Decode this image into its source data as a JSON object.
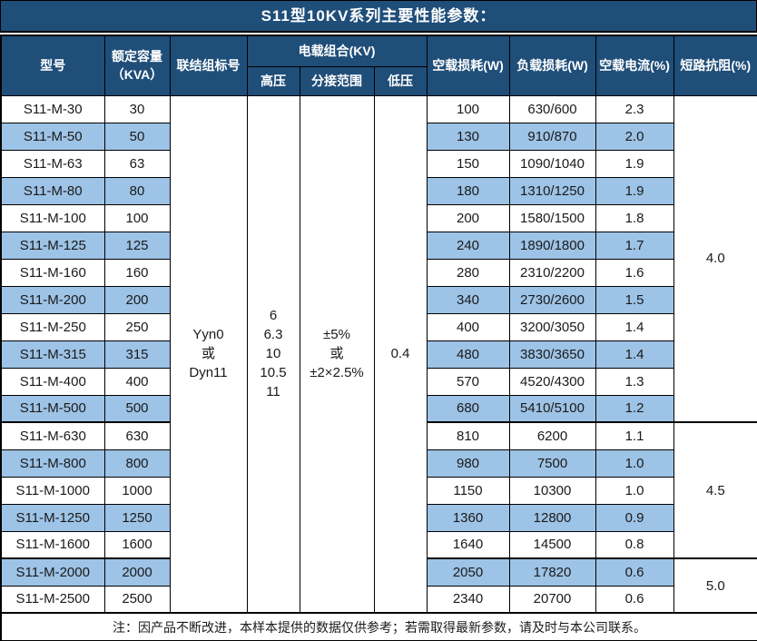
{
  "title": "S11型10KV系列主要性能参数：",
  "colors": {
    "header_bg": "#1F4E79",
    "alt_row_bg": "#9DC3E6",
    "border": "#000000",
    "header_text": "#FFFFFF"
  },
  "table": {
    "headers": {
      "model": "型号",
      "capacity_line1": "额定容量",
      "capacity_line2": "（KVA）",
      "vector_group": "联结组标号",
      "voltage_combo": "电载组合(KV)",
      "hv": "高压",
      "tap_range": "分接范围",
      "lv": "低压",
      "no_load_loss": "空载损耗(W)",
      "load_loss": "负载损耗(W)",
      "no_load_current": "空载电流(%)",
      "impedance": "短路抗阻(%)"
    },
    "merged": {
      "vector_group": [
        "Yyn0",
        "或",
        "Dyn11"
      ],
      "hv": [
        "6",
        "6.3",
        "10",
        "10.5",
        "11"
      ],
      "tap_range": [
        "±5%",
        "或",
        "±2×2.5%"
      ],
      "lv": [
        "0.4"
      ]
    },
    "impedance_groups": [
      {
        "value": "4.0",
        "rows": 12
      },
      {
        "value": "4.5",
        "rows": 5
      },
      {
        "value": "5.0",
        "rows": 2
      }
    ],
    "rows": [
      {
        "model": "S11-M-30",
        "capacity": "30",
        "no_load_loss": "100",
        "load_loss": "630/600",
        "no_load_current": "2.3"
      },
      {
        "model": "S11-M-50",
        "capacity": "50",
        "no_load_loss": "130",
        "load_loss": "910/870",
        "no_load_current": "2.0"
      },
      {
        "model": "S11-M-63",
        "capacity": "63",
        "no_load_loss": "150",
        "load_loss": "1090/1040",
        "no_load_current": "1.9"
      },
      {
        "model": "S11-M-80",
        "capacity": "80",
        "no_load_loss": "180",
        "load_loss": "1310/1250",
        "no_load_current": "1.9"
      },
      {
        "model": "S11-M-100",
        "capacity": "100",
        "no_load_loss": "200",
        "load_loss": "1580/1500",
        "no_load_current": "1.8"
      },
      {
        "model": "S11-M-125",
        "capacity": "125",
        "no_load_loss": "240",
        "load_loss": "1890/1800",
        "no_load_current": "1.7"
      },
      {
        "model": "S11-M-160",
        "capacity": "160",
        "no_load_loss": "280",
        "load_loss": "2310/2200",
        "no_load_current": "1.6"
      },
      {
        "model": "S11-M-200",
        "capacity": "200",
        "no_load_loss": "340",
        "load_loss": "2730/2600",
        "no_load_current": "1.5"
      },
      {
        "model": "S11-M-250",
        "capacity": "250",
        "no_load_loss": "400",
        "load_loss": "3200/3050",
        "no_load_current": "1.4"
      },
      {
        "model": "S11-M-315",
        "capacity": "315",
        "no_load_loss": "480",
        "load_loss": "3830/3650",
        "no_load_current": "1.4"
      },
      {
        "model": "S11-M-400",
        "capacity": "400",
        "no_load_loss": "570",
        "load_loss": "4520/4300",
        "no_load_current": "1.3"
      },
      {
        "model": "S11-M-500",
        "capacity": "500",
        "no_load_loss": "680",
        "load_loss": "5410/5100",
        "no_load_current": "1.2"
      },
      {
        "model": "S11-M-630",
        "capacity": "630",
        "no_load_loss": "810",
        "load_loss": "6200",
        "no_load_current": "1.1"
      },
      {
        "model": "S11-M-800",
        "capacity": "800",
        "no_load_loss": "980",
        "load_loss": "7500",
        "no_load_current": "1.0"
      },
      {
        "model": "S11-M-1000",
        "capacity": "1000",
        "no_load_loss": "1150",
        "load_loss": "10300",
        "no_load_current": "1.0"
      },
      {
        "model": "S11-M-1250",
        "capacity": "1250",
        "no_load_loss": "1360",
        "load_loss": "12800",
        "no_load_current": "0.9"
      },
      {
        "model": "S11-M-1600",
        "capacity": "1600",
        "no_load_loss": "1640",
        "load_loss": "14500",
        "no_load_current": "0.8"
      },
      {
        "model": "S11-M-2000",
        "capacity": "2000",
        "no_load_loss": "2050",
        "load_loss": "17820",
        "no_load_current": "0.6"
      },
      {
        "model": "S11-M-2500",
        "capacity": "2500",
        "no_load_loss": "2340",
        "load_loss": "20700",
        "no_load_current": "0.6"
      }
    ]
  },
  "note": "注：因产品不断改进，本样本提供的数据仅供参考；若需取得最新参数，请及时与本公司联系。"
}
